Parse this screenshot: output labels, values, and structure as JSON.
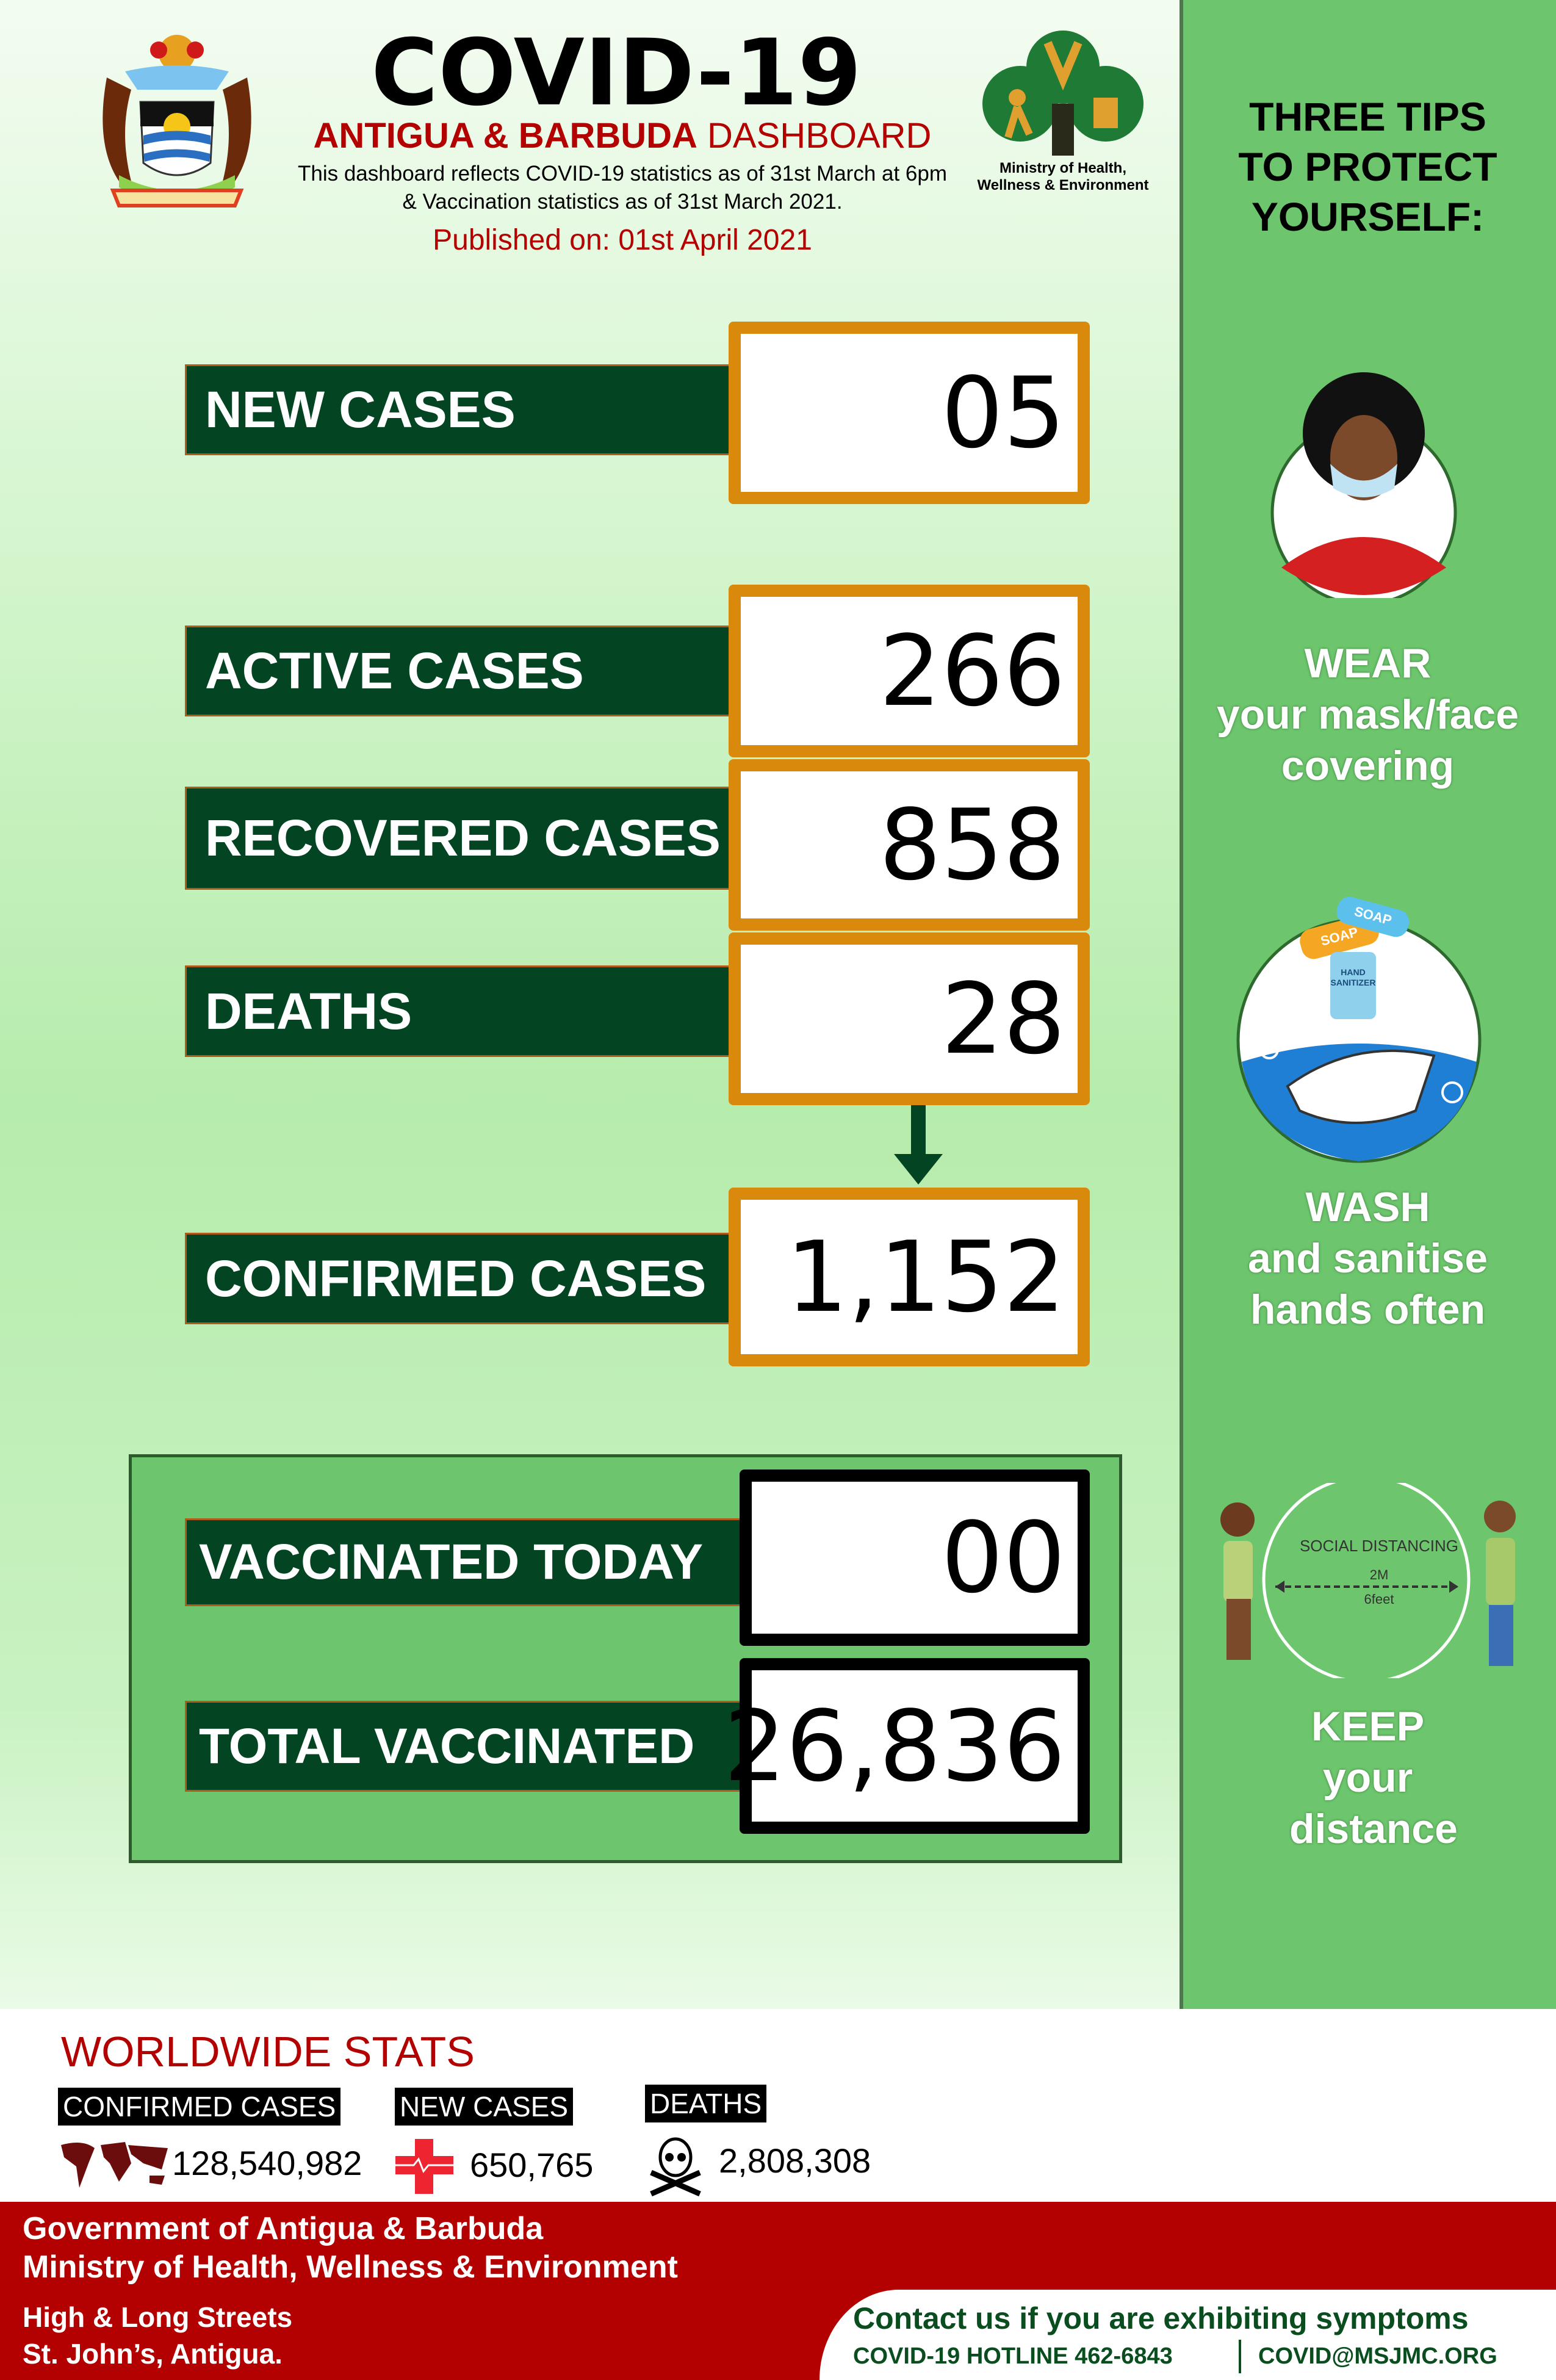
{
  "header": {
    "title": "COVID-19",
    "subtitle_bold": "ANTIGUA & BARBUDA",
    "subtitle_light": "DASHBOARD",
    "note_line1": "This dashboard reflects COVID-19 statistics as of 31st  March at 6pm",
    "note_line2": "& Vaccination statistics as of 31st March 2021.",
    "published": "Published on: 01st April 2021",
    "ministry_logo_text_line1": "Ministry of Health,",
    "ministry_logo_text_line2": "Wellness & Environment"
  },
  "stats": {
    "new_cases": {
      "label": "NEW CASES",
      "value": "05"
    },
    "active_cases": {
      "label": "ACTIVE CASES",
      "value": "266"
    },
    "recovered_cases": {
      "label": "RECOVERED CASES",
      "value": "858"
    },
    "deaths": {
      "label": "DEATHS",
      "value": "28"
    },
    "confirmed_cases": {
      "label": "CONFIRMED CASES",
      "value": "1,152"
    }
  },
  "vaccination": {
    "today": {
      "label": "VACCINATED TODAY",
      "value": "00"
    },
    "total": {
      "label": "TOTAL VACCINATED",
      "value": "26,836"
    }
  },
  "tips": {
    "heading": "THREE TIPS TO PROTECT YOURSELF:",
    "items": [
      {
        "title": "WEAR",
        "text": "your mask/face covering"
      },
      {
        "title": "WASH",
        "text": "and sanitise hands often"
      },
      {
        "title": "KEEP",
        "text": "your distance"
      }
    ],
    "distancing_label": "SOCIAL DISTANCING",
    "distancing_m": "2M",
    "distancing_ft": "6feet",
    "soap_label": "SOAP",
    "sanitizer_label": "HAND SANITIZER"
  },
  "worldwide": {
    "heading": "WORLDWIDE STATS",
    "confirmed": {
      "label": "CONFIRMED CASES",
      "value": "128,540,982",
      "icon": "world-map-icon"
    },
    "new_cases": {
      "label": "NEW CASES",
      "value": "650,765",
      "icon": "red-cross-icon"
    },
    "deaths": {
      "label": "DEATHS",
      "value": "2,808,308",
      "icon": "skull-crossbones-icon"
    }
  },
  "footer": {
    "line1": "Government of Antigua & Barbuda",
    "line2": "Ministry of Health, Wellness & Environment",
    "address1": "High & Long Streets",
    "address2": "St. John’s, Antigua.",
    "contact": "Contact us if you are exhibiting symptoms",
    "hotline": "COVID-19 HOTLINE 462-6843",
    "email": "COVID@MSJMC.ORG"
  },
  "colors": {
    "dark_green": "#034422",
    "orange": "#d98a0c",
    "red": "#b30000",
    "panel_green": "#6dc66d"
  }
}
